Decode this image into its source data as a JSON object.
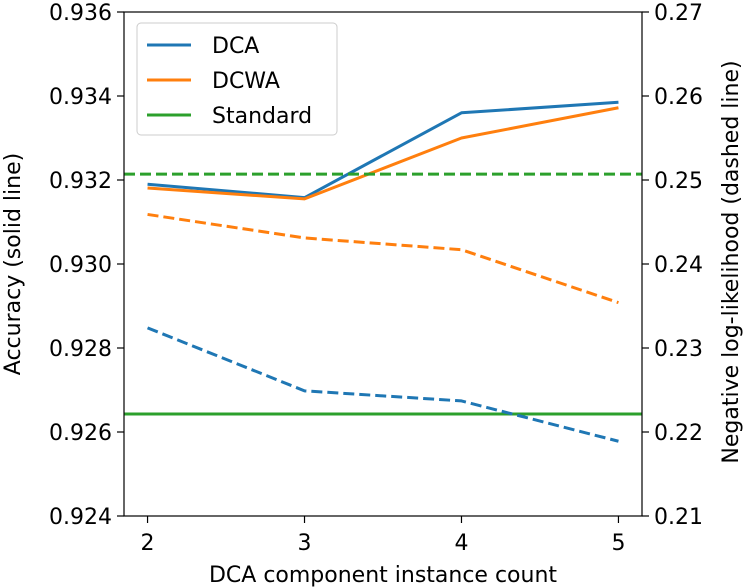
{
  "chart_data": {
    "type": "line",
    "title": "",
    "xlabel": "DCA component instance count",
    "ylabel": "Accuracy (solid line)",
    "y2label": "Negative log-likelihood (dashed line)",
    "x": [
      2,
      3,
      4,
      5
    ],
    "xlim": [
      1.85,
      5.15
    ],
    "ylim": [
      0.924,
      0.936
    ],
    "y2lim": [
      0.21,
      0.27
    ],
    "x_ticks": [
      "2",
      "3",
      "4",
      "5"
    ],
    "y_ticks": [
      "0.924",
      "0.926",
      "0.928",
      "0.930",
      "0.932",
      "0.934",
      "0.936"
    ],
    "y2_ticks": [
      "0.21",
      "0.22",
      "0.23",
      "0.24",
      "0.25",
      "0.26",
      "0.27"
    ],
    "legend_position": "top-left",
    "series": [
      {
        "name": "DCA",
        "color": "#1f77b4",
        "axis": "left",
        "style": "solid",
        "values": [
          0.9319,
          0.93158,
          0.9336,
          0.93385
        ]
      },
      {
        "name": "DCWA",
        "color": "#ff7f0e",
        "axis": "left",
        "style": "solid",
        "values": [
          0.93181,
          0.93155,
          0.933,
          0.93372
        ]
      },
      {
        "name": "Standard",
        "color": "#2ca02c",
        "axis": "left",
        "style": "solid",
        "values": [
          0.92643,
          0.92643,
          0.92643,
          0.92643
        ]
      },
      {
        "name": "DCA",
        "color": "#1f77b4",
        "axis": "right",
        "style": "dashed",
        "values": [
          0.2324,
          0.2249,
          0.2237,
          0.2189
        ]
      },
      {
        "name": "DCWA",
        "color": "#ff7f0e",
        "axis": "right",
        "style": "dashed",
        "values": [
          0.2459,
          0.2431,
          0.2417,
          0.2354
        ]
      },
      {
        "name": "Standard",
        "color": "#2ca02c",
        "axis": "right",
        "style": "dashed",
        "values": [
          0.2507,
          0.2507,
          0.2507,
          0.2507
        ]
      }
    ],
    "legend": [
      "DCA",
      "DCWA",
      "Standard"
    ]
  }
}
